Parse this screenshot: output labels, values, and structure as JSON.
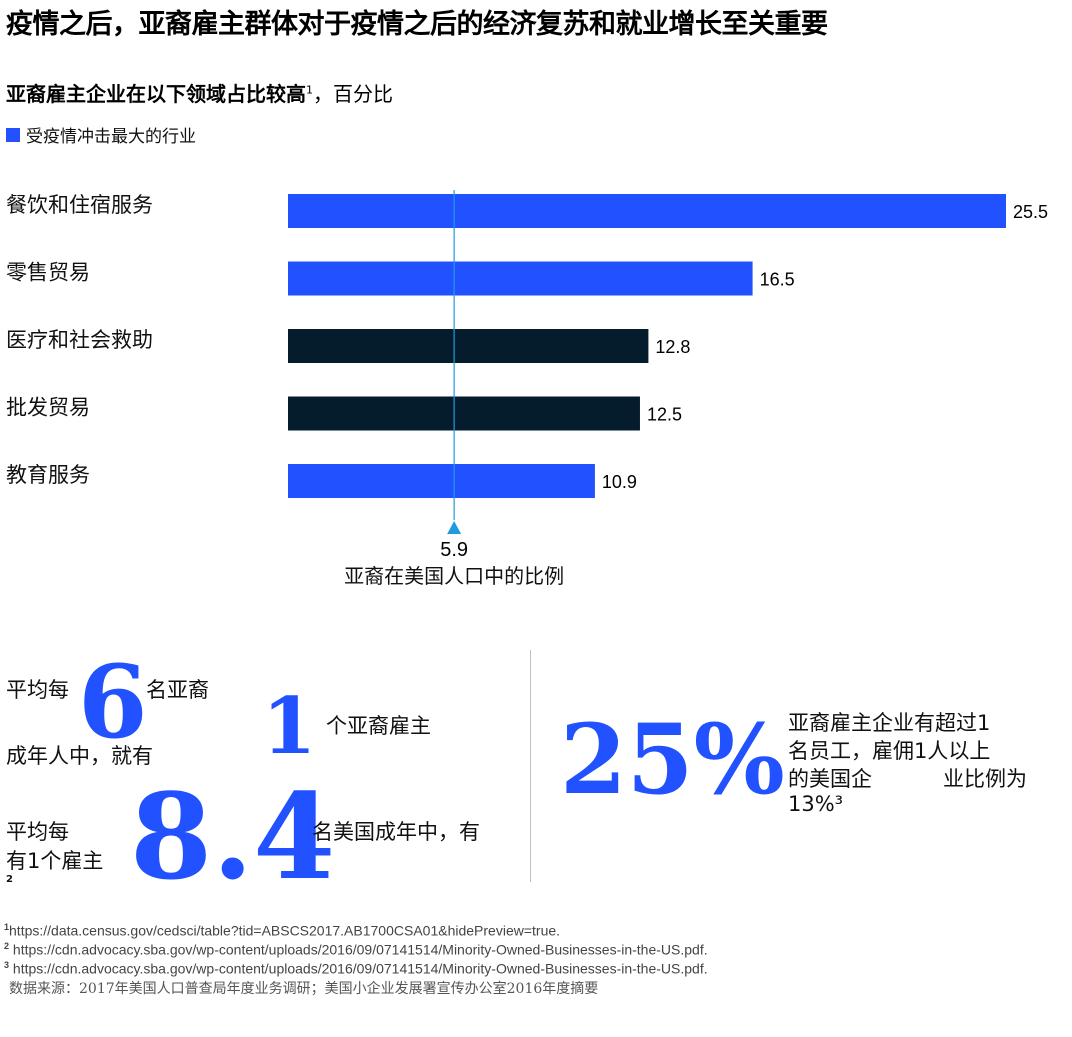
{
  "header": {
    "title": "疫情之后，亚裔雇主群体对于疫情之后的经济复苏和就业增长至关重要",
    "subtitle_bold": "亚裔雇主企业在以下领域占比较高",
    "subtitle_sup": "1",
    "subtitle_rest": "，百分比"
  },
  "legend": {
    "label": "受疫情冲击最大的行业",
    "color": "#2251ff"
  },
  "chart_data": {
    "type": "bar",
    "orientation": "horizontal",
    "categories": [
      "餐饮和住宿服务",
      "零售贸易",
      "医疗和社会救助",
      "批发贸易",
      "教育服务"
    ],
    "values": [
      25.5,
      16.5,
      12.8,
      12.5,
      10.9
    ],
    "highlight": [
      true,
      true,
      false,
      false,
      true
    ],
    "colors": {
      "highlight": "#2251ff",
      "other": "#051c2c",
      "reference": "#1f9bde"
    },
    "reference": {
      "value": 5.9,
      "value_label": "5.9",
      "label": "亚裔在美国人口中的比例"
    },
    "xlim": [
      0,
      25.5
    ],
    "legend_position": "top-left"
  },
  "stats": {
    "s1_pre": "平均每",
    "s1_num": "6",
    "s1_post": "名亚裔",
    "s1_line2": "成年人中，就有",
    "s2_num": "1",
    "s2_text": "个亚裔雇主",
    "s3_pre1": "平均每",
    "s3_pre2": "有1个雇主",
    "s3_sup": "2",
    "s3_num": "8.4",
    "s3_post": "名美国成年中，有",
    "s4_num": "25%",
    "s4_line1": "亚裔雇主企业有超过1",
    "s4_line2": "名员工，雇佣1人以上",
    "s4_line3a": "的美国企",
    "s4_line3b": "业比例为",
    "s4_line4": "13%³"
  },
  "footnotes": {
    "f1_mark": "1",
    "f1": "https://data.census.gov/cedsci/table?tid=ABSCS2017.AB1700CSA01&hidePreview=true.",
    "f2_mark": "2",
    "f2": "https://cdn.advocacy.sba.gov/wp-content/uploads/2016/09/07141514/Minority-Owned-Businesses-in-the-US.pdf.",
    "f3_mark": "3",
    "f3": "https://cdn.advocacy.sba.gov/wp-content/uploads/2016/09/07141514/Minority-Owned-Businesses-in-the-US.pdf.",
    "source": "数据来源：2017年美国人口普查局年度业务调研；美国小企业发展署宣传办公室2016年度摘要"
  }
}
